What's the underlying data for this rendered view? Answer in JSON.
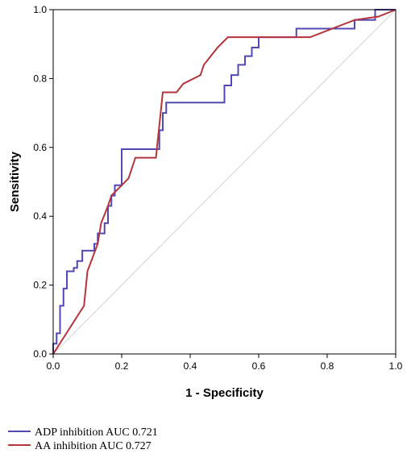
{
  "chart_data": {
    "type": "line",
    "title": "",
    "xlabel": "1 - Specificity",
    "ylabel": "Sensitivity",
    "xlim": [
      0,
      1
    ],
    "ylim": [
      0,
      1
    ],
    "xticks": [
      "0.0",
      "0.2",
      "0.4",
      "0.6",
      "0.8",
      "1.0"
    ],
    "yticks": [
      "0.0",
      "0.2",
      "0.4",
      "0.6",
      "0.8",
      "1.0"
    ],
    "grid": false,
    "legend_position": "bottom-left",
    "reference_line": {
      "x": [
        0,
        1
      ],
      "y": [
        0,
        1
      ],
      "color": "#d9d9d9"
    },
    "series": [
      {
        "name": "ADP inhibition AUC 0.721",
        "color": "#5148b5",
        "x": [
          0.0,
          0.0,
          0.01,
          0.01,
          0.02,
          0.02,
          0.03,
          0.03,
          0.04,
          0.04,
          0.06,
          0.06,
          0.07,
          0.07,
          0.085,
          0.085,
          0.12,
          0.12,
          0.13,
          0.13,
          0.15,
          0.15,
          0.16,
          0.16,
          0.17,
          0.17,
          0.18,
          0.18,
          0.2,
          0.2,
          0.31,
          0.31,
          0.32,
          0.32,
          0.33,
          0.33,
          0.5,
          0.5,
          0.52,
          0.52,
          0.54,
          0.54,
          0.56,
          0.56,
          0.58,
          0.58,
          0.6,
          0.6,
          0.63,
          0.63,
          0.71,
          0.71,
          0.74,
          0.74,
          0.88,
          0.88,
          0.9,
          0.9,
          0.94,
          0.94,
          1.0
        ],
        "y": [
          0.0,
          0.03,
          0.03,
          0.06,
          0.06,
          0.14,
          0.14,
          0.19,
          0.19,
          0.24,
          0.24,
          0.25,
          0.25,
          0.27,
          0.27,
          0.3,
          0.3,
          0.32,
          0.32,
          0.35,
          0.35,
          0.38,
          0.38,
          0.43,
          0.43,
          0.46,
          0.46,
          0.49,
          0.49,
          0.595,
          0.595,
          0.65,
          0.65,
          0.7,
          0.7,
          0.73,
          0.73,
          0.78,
          0.78,
          0.81,
          0.81,
          0.84,
          0.84,
          0.865,
          0.865,
          0.89,
          0.89,
          0.92,
          0.92,
          0.92,
          0.92,
          0.945,
          0.945,
          0.945,
          0.945,
          0.97,
          0.97,
          0.97,
          0.97,
          1.0,
          1.0
        ]
      },
      {
        "name": "AA inhibition AUC 0.727",
        "color": "#b4343b",
        "x": [
          0.0,
          0.09,
          0.09,
          0.1,
          0.1,
          0.13,
          0.13,
          0.14,
          0.14,
          0.16,
          0.16,
          0.17,
          0.17,
          0.2,
          0.2,
          0.22,
          0.22,
          0.24,
          0.24,
          0.3,
          0.3,
          0.32,
          0.32,
          0.36,
          0.36,
          0.38,
          0.38,
          0.43,
          0.43,
          0.44,
          0.44,
          0.46,
          0.46,
          0.48,
          0.48,
          0.51,
          0.51,
          0.75,
          0.75,
          0.88,
          0.88,
          0.95,
          0.95,
          1.0
        ],
        "y": [
          0.0,
          0.14,
          0.14,
          0.24,
          0.24,
          0.32,
          0.32,
          0.38,
          0.38,
          0.43,
          0.43,
          0.46,
          0.46,
          0.49,
          0.49,
          0.51,
          0.51,
          0.57,
          0.57,
          0.57,
          0.57,
          0.76,
          0.76,
          0.76,
          0.76,
          0.785,
          0.785,
          0.81,
          0.81,
          0.84,
          0.84,
          0.865,
          0.865,
          0.89,
          0.89,
          0.92,
          0.92,
          0.92,
          0.92,
          0.97,
          0.97,
          0.98,
          0.98,
          1.0
        ]
      }
    ]
  }
}
